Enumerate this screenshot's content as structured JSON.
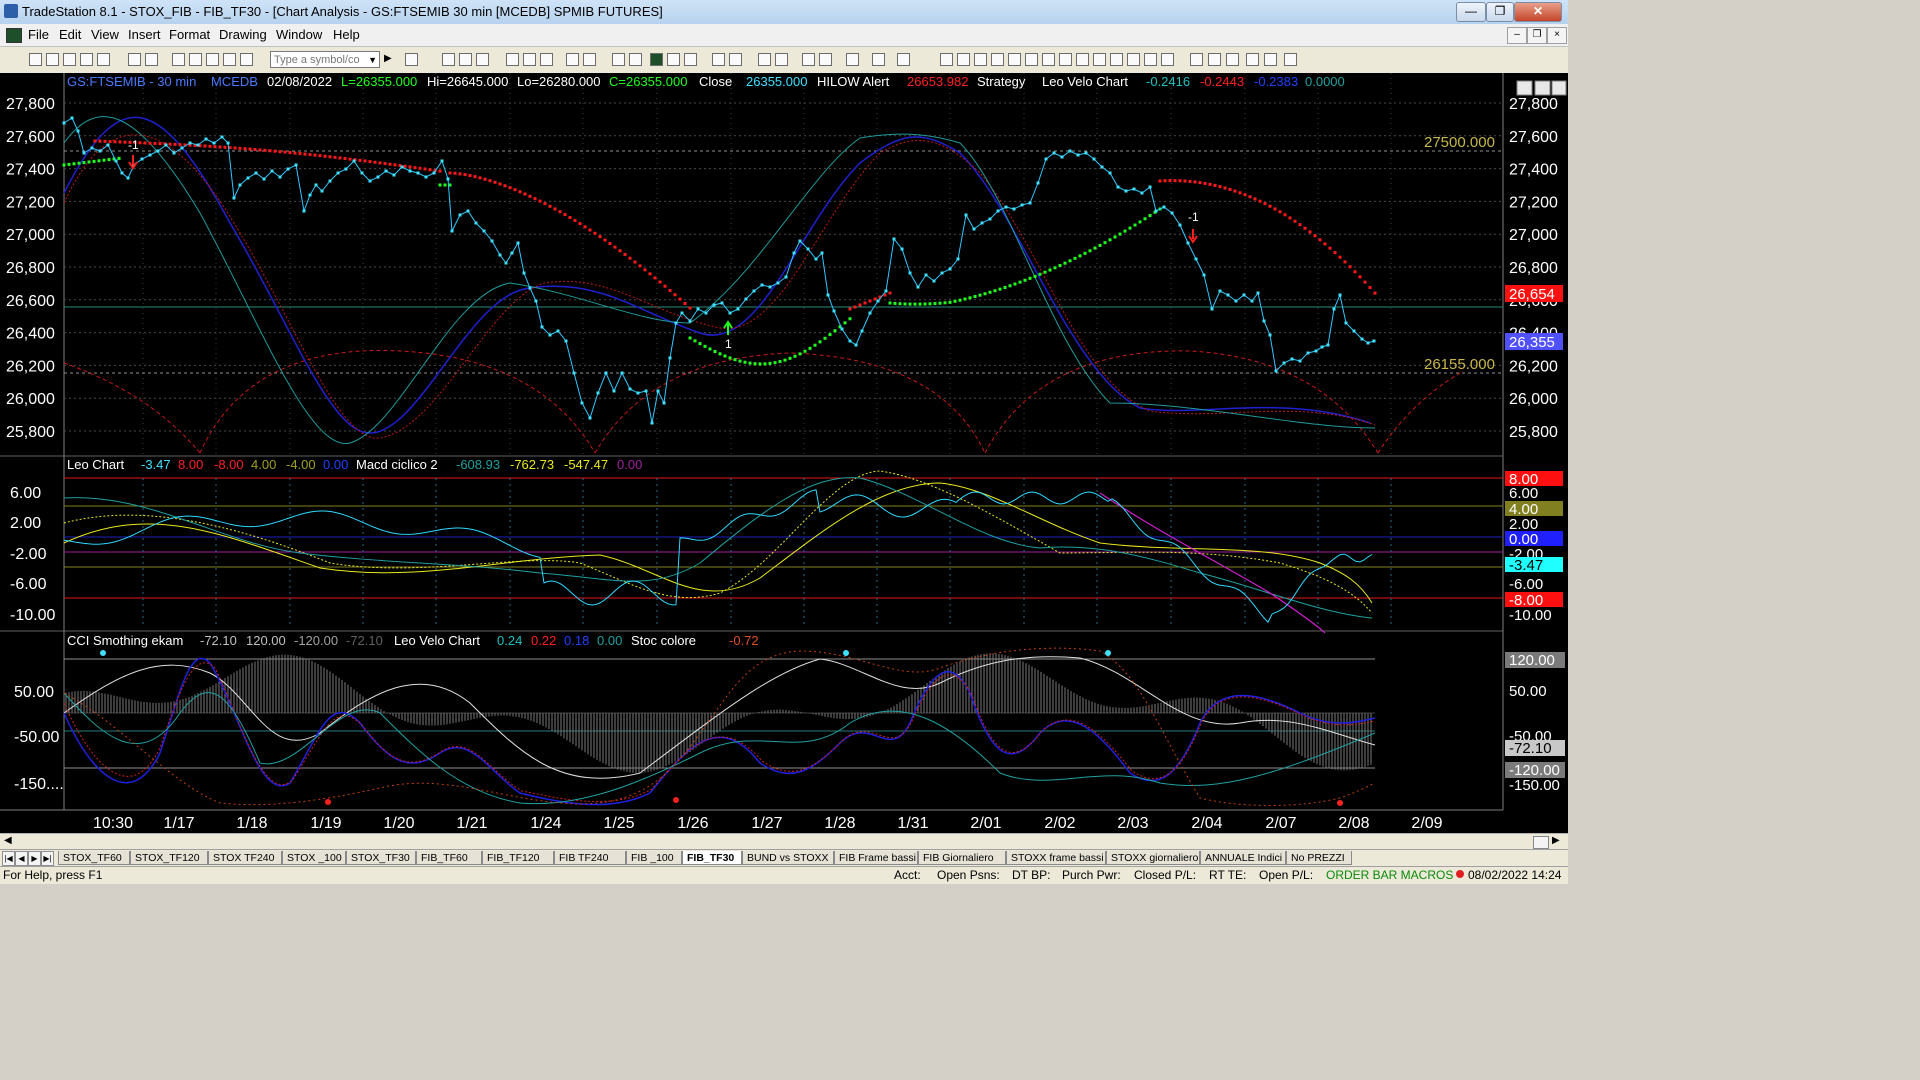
{
  "window": {
    "title": "TradeStation 8.1 - STOX_FIB - FIB_TF30 - [Chart Analysis - GS:FTSEMIB  30 min  [MCEDB] SPMIB FUTURES]"
  },
  "menu": [
    "File",
    "Edit",
    "View",
    "Insert",
    "Format",
    "Drawing",
    "Window",
    "Help"
  ],
  "toolbar": {
    "symbol_placeholder": "Type a symbol/co"
  },
  "chart": {
    "header": {
      "symbol": "GS:FTSEMIB - 30 min",
      "feed": "MCEDB",
      "date": "02/08/2022",
      "last": "L=26355.000",
      "hi": "Hi=26645.000",
      "lo": "Lo=26280.000",
      "close": "C=26355.000",
      "close_label": "Close",
      "close_val": "26355.000",
      "hilow_label": "HILOW Alert",
      "hilow_val": "26653.982",
      "strategy_label": "Strategy",
      "leo_velo_label": "Leo Velo Chart",
      "leo_velo_vals": [
        "-0.2416",
        "-0.2443",
        "-0.2383",
        "0.0000"
      ]
    },
    "price_axis": [
      "27,800",
      "27,600",
      "27,400",
      "27,200",
      "27,000",
      "26,800",
      "26,600",
      "26,400",
      "26,200",
      "26,000",
      "25,800"
    ],
    "price_right_labels": {
      "upper": "27500.000",
      "lower": "26155.000"
    },
    "price_tags": {
      "hilow": "26,654",
      "last": "26,355"
    },
    "signals": {
      "sell1": "-1",
      "sell2": "-1",
      "buy1": "1"
    },
    "sub1": {
      "label": "Leo Chart",
      "vals": [
        "-3.47",
        "8.00",
        "-8.00",
        "4.00",
        "-4.00",
        "0.00"
      ],
      "macd_label": "Macd ciclico 2",
      "macd_vals": [
        "-608.93",
        "-762.73",
        "-547.47",
        "0.00"
      ],
      "axis": [
        "6.00",
        "2.00",
        "-2.00",
        "-6.00",
        "-10.00"
      ],
      "tags": [
        "8.00",
        "6.00",
        "4.00",
        "2.00",
        "0.00",
        "-2.00",
        "-3.47",
        "-6.00",
        "-8.00",
        "-10.00"
      ]
    },
    "sub2": {
      "label": "CCI Smothing ekam",
      "vals": [
        "-72.10",
        "120.00",
        "-120.00",
        "-72.10"
      ],
      "velo_label": "Leo Velo Chart",
      "velo_vals": [
        "0.24",
        "0.22",
        "0.18",
        "0.00"
      ],
      "stoc_label": "Stoc colore",
      "stoc_val": "-0.72",
      "axis": [
        "50.00",
        "-50.00",
        "-150...."
      ],
      "tags": [
        "120.00",
        "50.00",
        "-50.00",
        "-72.10",
        "-120.00",
        "-150.00"
      ]
    },
    "time_axis": [
      "10:30",
      "1/17",
      "1/18",
      "1/19",
      "1/20",
      "1/21",
      "1/24",
      "1/25",
      "1/26",
      "1/27",
      "1/28",
      "1/31",
      "2/01",
      "2/02",
      "2/03",
      "2/04",
      "2/07",
      "2/08",
      "2/09"
    ],
    "colors": {
      "price": "#40e0ff",
      "up": "#00ff30",
      "down": "#ff1a1a",
      "blue": "#2020ff",
      "teal": "#20a0a0",
      "yellow": "#ffff20",
      "magenta": "#ff20ff",
      "grid": "#5a5a5a"
    }
  },
  "tabs": [
    "STOX_TF60",
    "STOX_TF120",
    "STOX TF240",
    "STOX _100",
    "STOX_TF30",
    "FIB_TF60",
    "FIB_TF120",
    "FIB TF240",
    "FIB _100",
    "FIB_TF30",
    "BUND vs STOXX",
    "FIB Frame bassi",
    "FIB Giornaliero",
    "STOXX frame bassi",
    "STOXX giornaliero",
    "ANNUALE Indici",
    "No PREZZI"
  ],
  "active_tab": "FIB_TF30",
  "status": {
    "help": "For Help, press F1",
    "acct": "Acct:",
    "open_psns": "Open Psns:",
    "dt_bp": "DT BP:",
    "purch_pwr": "Purch Pwr:",
    "closed_pl": "Closed P/L:",
    "rt_te": "RT TE:",
    "open_pl": "Open P/L:",
    "macros": "ORDER BAR  MACROS",
    "datetime": "08/02/2022 14:24"
  }
}
